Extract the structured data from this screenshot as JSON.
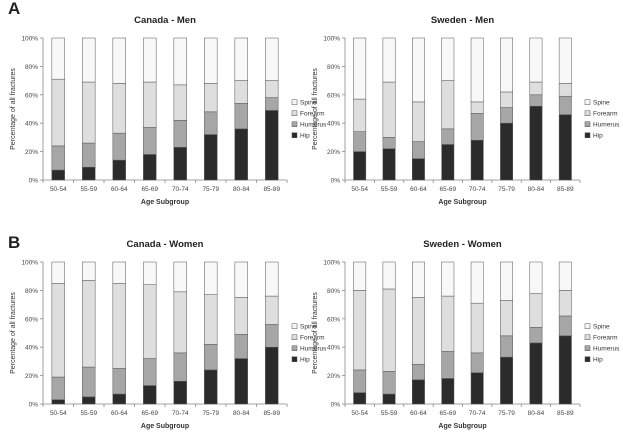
{
  "panels": [
    {
      "letter": "A",
      "charts": [
        0,
        1
      ]
    },
    {
      "letter": "B",
      "charts": [
        2,
        3
      ]
    }
  ],
  "colors": {
    "hip": "#2b2b2b",
    "humerus": "#a6a6a6",
    "forearm": "#dedede",
    "spine": "#f8f8f8",
    "stroke": "#555555",
    "axis": "#888888"
  },
  "chart_data": [
    {
      "type": "bar",
      "stacked": true,
      "title": "Canada - Men",
      "xlabel": "Age Subgroup",
      "ylabel": "Percentage of all fractures",
      "categories": [
        "50-54",
        "55-59",
        "60-64",
        "65-69",
        "70-74",
        "75-79",
        "80-84",
        "85-89"
      ],
      "yticks": [
        "0%",
        "20%",
        "40%",
        "60%",
        "80%",
        "100%"
      ],
      "ylim": [
        0,
        100
      ],
      "series": [
        {
          "name": "Hip",
          "values": [
            7,
            9,
            14,
            18,
            23,
            32,
            36,
            49
          ]
        },
        {
          "name": "Humerus",
          "values": [
            17,
            17,
            19,
            19,
            19,
            16,
            18,
            9
          ]
        },
        {
          "name": "Forearm",
          "values": [
            47,
            43,
            35,
            32,
            25,
            20,
            16,
            12
          ]
        },
        {
          "name": "Spine",
          "values": [
            29,
            31,
            32,
            31,
            33,
            32,
            30,
            30
          ]
        }
      ],
      "legend": [
        "Spine",
        "Forearm",
        "Humerus",
        "Hip"
      ]
    },
    {
      "type": "bar",
      "stacked": true,
      "title": "Sweden - Men",
      "xlabel": "Age Subgroup",
      "ylabel": "Percentage of all fractures",
      "categories": [
        "50-54",
        "55-59",
        "60-64",
        "65-69",
        "70-74",
        "75-79",
        "80-84",
        "85-89"
      ],
      "yticks": [
        "0%",
        "20%",
        "40%",
        "60%",
        "80%",
        "100%"
      ],
      "ylim": [
        0,
        100
      ],
      "series": [
        {
          "name": "Hip",
          "values": [
            20,
            22,
            15,
            25,
            28,
            40,
            52,
            46
          ]
        },
        {
          "name": "Humerus",
          "values": [
            14,
            8,
            12,
            11,
            19,
            11,
            8,
            13
          ]
        },
        {
          "name": "Forearm",
          "values": [
            23,
            39,
            28,
            34,
            8,
            11,
            9,
            9
          ]
        },
        {
          "name": "Spine",
          "values": [
            43,
            31,
            45,
            30,
            45,
            38,
            31,
            32
          ]
        }
      ],
      "legend": [
        "Spine",
        "Forearm",
        "Humerus",
        "Hip"
      ]
    },
    {
      "type": "bar",
      "stacked": true,
      "title": "Canada - Women",
      "xlabel": "Age Subgroup",
      "ylabel": "Percentage of all fractures",
      "categories": [
        "50-54",
        "55-59",
        "60-64",
        "65-69",
        "70-74",
        "75-79",
        "80-84",
        "85-89"
      ],
      "yticks": [
        "0%",
        "20%",
        "40%",
        "60%",
        "80%",
        "100%"
      ],
      "ylim": [
        0,
        100
      ],
      "series": [
        {
          "name": "Hip",
          "values": [
            3,
            5,
            7,
            13,
            16,
            24,
            32,
            40
          ]
        },
        {
          "name": "Humerus",
          "values": [
            16,
            21,
            18,
            19,
            20,
            18,
            17,
            16
          ]
        },
        {
          "name": "Forearm",
          "values": [
            66,
            61,
            60,
            52,
            43,
            35,
            26,
            20
          ]
        },
        {
          "name": "Spine",
          "values": [
            15,
            13,
            15,
            16,
            21,
            23,
            25,
            24
          ]
        }
      ],
      "legend": [
        "Spine",
        "Forearm",
        "Humerus",
        "Hip"
      ]
    },
    {
      "type": "bar",
      "stacked": true,
      "title": "Sweden - Women",
      "xlabel": "Age Subgroup",
      "ylabel": "Percentage of all fractures",
      "categories": [
        "50-54",
        "55-59",
        "60-64",
        "65-69",
        "70-74",
        "75-79",
        "80-84",
        "85-89"
      ],
      "yticks": [
        "0%",
        "20%",
        "40%",
        "60%",
        "80%",
        "100%"
      ],
      "ylim": [
        0,
        100
      ],
      "series": [
        {
          "name": "Hip",
          "values": [
            8,
            7,
            17,
            18,
            22,
            33,
            43,
            48
          ]
        },
        {
          "name": "Humerus",
          "values": [
            16,
            16,
            11,
            19,
            14,
            15,
            11,
            14
          ]
        },
        {
          "name": "Forearm",
          "values": [
            56,
            58,
            47,
            39,
            35,
            25,
            24,
            18
          ]
        },
        {
          "name": "Spine",
          "values": [
            20,
            19,
            25,
            24,
            29,
            27,
            22,
            20
          ]
        }
      ],
      "legend": [
        "Spine",
        "Forearm",
        "Humerus",
        "Hip"
      ]
    }
  ]
}
